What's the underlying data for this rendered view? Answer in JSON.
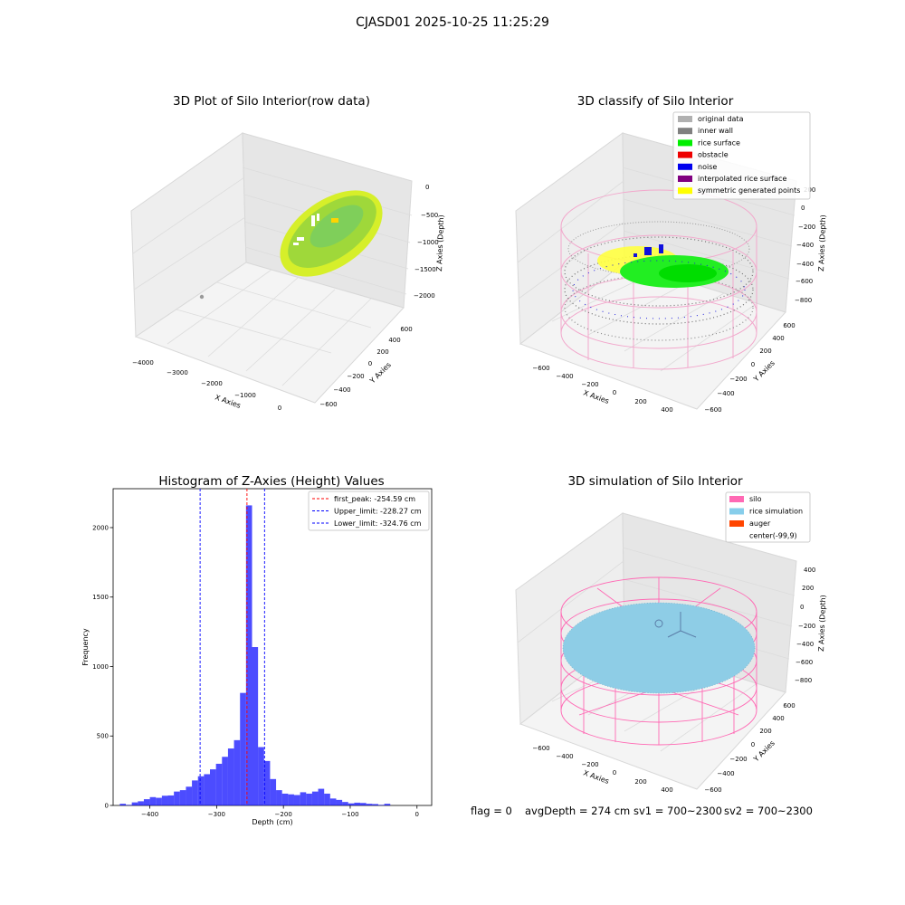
{
  "figure": {
    "suptitle": "CJASD01 2025-10-25 11:25:29",
    "status_line": {
      "flag": "flag = 0",
      "avg_depth": "avgDepth = 274 cm",
      "sv1": "sv1 = 700~2300",
      "sv2": "sv2 = 700~2300"
    }
  },
  "panels": {
    "raw": {
      "title": "3D Plot of Silo Interior(row data)",
      "xlabel": "X Axies",
      "ylabel": "Y Axies",
      "zlabel": "Z Axies (Depth)",
      "xticks": [
        "−4000",
        "−3000",
        "−2000",
        "−1000",
        "0"
      ],
      "yticks": [
        "−600",
        "−400",
        "−200",
        "0",
        "200",
        "400",
        "600"
      ],
      "zticks": [
        "0",
        "−500",
        "−1000",
        "−1500",
        "−2000"
      ],
      "colors": {
        "surface": "#9fd83a",
        "surface_light": "#c8e84a",
        "rim": "#d6ef2a",
        "inner": "#7fcf5a",
        "holes": "#ffffff",
        "obstacle": "#ffd400"
      }
    },
    "classify": {
      "title": "3D classify of Silo Interior",
      "xlabel": "X Axies",
      "ylabel": "Y Axies",
      "zlabel": "Z Axies (Depth)",
      "xticks": [
        "−600",
        "−400",
        "−200",
        "0",
        "200",
        "400"
      ],
      "yticks": [
        "−600",
        "−400",
        "−200",
        "0",
        "200",
        "400",
        "600"
      ],
      "zticks": [
        "200",
        "0",
        "−200",
        "−400",
        "−600",
        "−800"
      ],
      "legend": [
        {
          "label": "original data",
          "color": "#b0b0b0"
        },
        {
          "label": "inner wall",
          "color": "#808080"
        },
        {
          "label": "rice surface",
          "color": "#00ee00"
        },
        {
          "label": "obstacle",
          "color": "#ee0000"
        },
        {
          "label": "noise",
          "color": "#0000ee"
        },
        {
          "label": "interpolated rice surface",
          "color": "#800080"
        },
        {
          "label": "symmetric generated points",
          "color": "#ffff00"
        }
      ],
      "colors": {
        "wireframe": "#f2a8cc"
      }
    },
    "histogram": {
      "title": "Histogram of Z-Axies (Height) Values",
      "xlabel": "Depth (cm)",
      "ylabel": "Frequency",
      "legend": [
        {
          "label": "first_peak: -254.59 cm",
          "color": "#ff0000"
        },
        {
          "label": "Upper_limit: -228.27 cm",
          "color": "#0000ff"
        },
        {
          "label": "Lower_limit: -324.76 cm",
          "color": "#0000ff"
        }
      ]
    },
    "simulation": {
      "title": "3D simulation of Silo Interior",
      "xlabel": "X Axies",
      "ylabel": "Y Axies",
      "zlabel": "Z Axies (Depth)",
      "xticks": [
        "−600",
        "−400",
        "−200",
        "0",
        "200",
        "400"
      ],
      "yticks": [
        "−600",
        "−400",
        "−200",
        "0",
        "200",
        "400",
        "600"
      ],
      "zticks": [
        "400",
        "200",
        "0",
        "−200",
        "−400",
        "−600",
        "−800"
      ],
      "legend": [
        {
          "label": "silo",
          "color": "#ff69b4"
        },
        {
          "label": "rice simulation",
          "color": "#87ceeb"
        },
        {
          "label": "auger",
          "color": "#ff4500"
        },
        {
          "label": "center(-99,9)",
          "color": ""
        }
      ],
      "colors": {
        "wireframe": "#ff69b4",
        "disk": "#8ecde6"
      }
    }
  },
  "chart_data": {
    "type": "bar",
    "title": "Histogram of Z-Axies (Height) Values",
    "xlabel": "Depth (cm)",
    "ylabel": "Frequency",
    "xlim": [
      -455,
      22
    ],
    "ylim": [
      0,
      2280
    ],
    "xticks": [
      -400,
      -300,
      -200,
      -100,
      0
    ],
    "yticks": [
      0,
      500,
      1000,
      1500,
      2000
    ],
    "bin_start": -445,
    "bin_width": 9,
    "values": [
      12,
      4,
      22,
      30,
      45,
      60,
      55,
      70,
      72,
      100,
      110,
      135,
      180,
      210,
      225,
      260,
      300,
      350,
      410,
      470,
      810,
      2160,
      1140,
      420,
      320,
      190,
      110,
      85,
      80,
      75,
      95,
      85,
      100,
      120,
      85,
      50,
      40,
      25,
      15,
      20,
      18,
      12,
      10,
      4,
      12
    ],
    "bar_color": "#0000ff",
    "bar_opacity": 0.7,
    "vlines": [
      {
        "name": "first_peak: -254.59 cm",
        "x": -254.59,
        "color": "#ff0000"
      },
      {
        "name": "Upper_limit: -228.27 cm",
        "x": -228.27,
        "color": "#0000ff"
      },
      {
        "name": "Lower_limit: -324.76 cm",
        "x": -324.76,
        "color": "#0000ff"
      }
    ],
    "legend_position": "upper right"
  }
}
